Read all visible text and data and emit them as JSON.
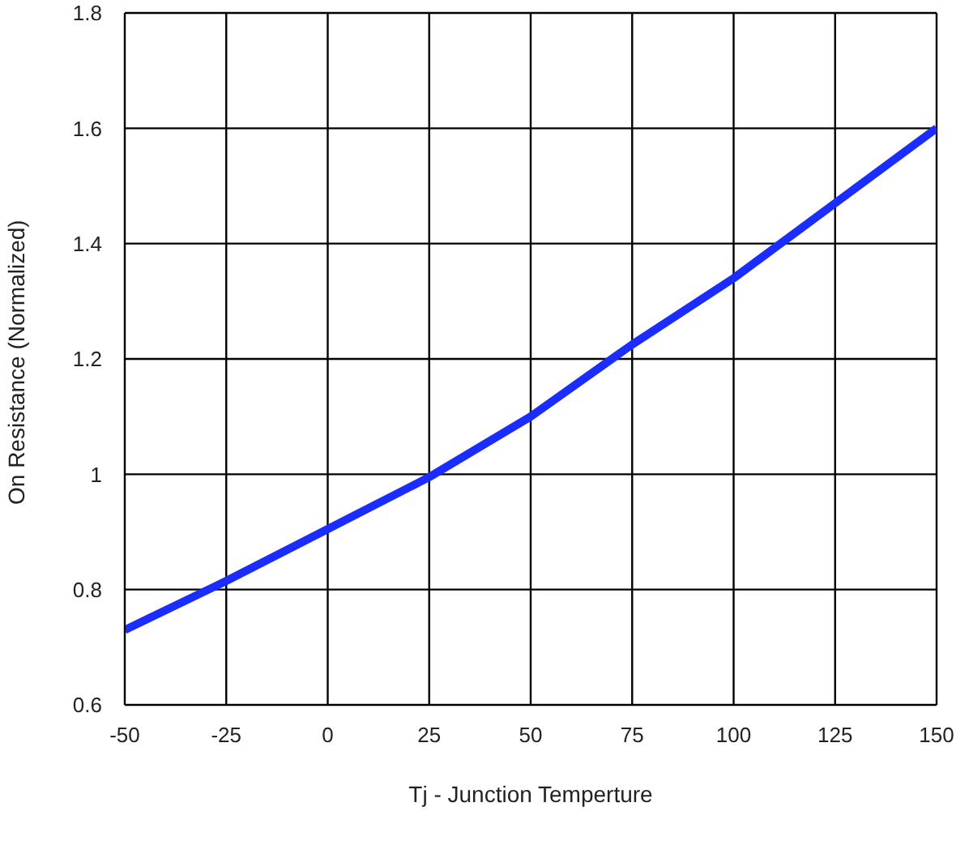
{
  "chart_data": {
    "type": "line",
    "xlabel": "Tj - Junction Temperture",
    "ylabel": "On Resistance (Normalized)",
    "x": [
      -50,
      -25,
      0,
      25,
      50,
      75,
      100,
      125,
      150
    ],
    "series": [
      {
        "color": "#1a2cff",
        "values": [
          0.73,
          0.815,
          0.905,
          0.995,
          1.1,
          1.225,
          1.34,
          1.47,
          1.6
        ]
      }
    ],
    "xlim": [
      -50,
      150
    ],
    "xticks": [
      -50,
      -25,
      0,
      25,
      50,
      75,
      100,
      125,
      150
    ],
    "ylim": [
      0.6,
      1.8
    ],
    "yticks": [
      0.6,
      0.8,
      1,
      1.2,
      1.4,
      1.6,
      1.8
    ],
    "grid": true,
    "legend": false,
    "marker": "none",
    "line_style": "solid"
  }
}
